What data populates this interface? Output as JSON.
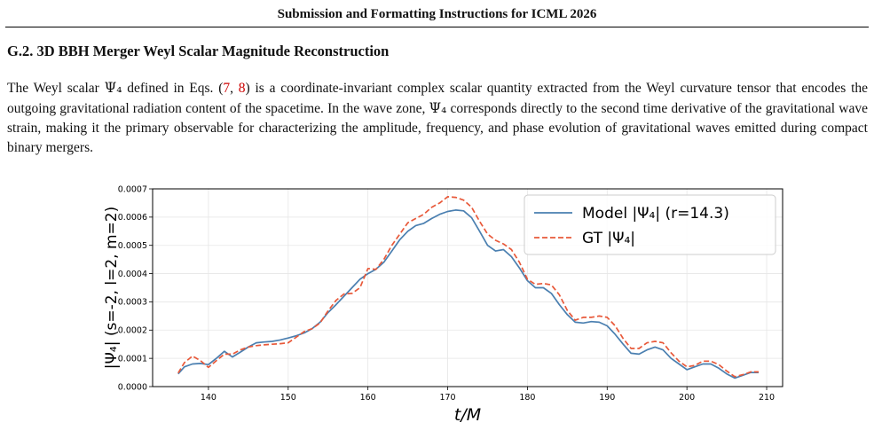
{
  "running_header": "Submission and Formatting Instructions for ICML 2026",
  "section": {
    "title": "G.2. 3D BBH Merger Weyl Scalar Magnitude Reconstruction"
  },
  "paragraph": {
    "p1": "The Weyl scalar ",
    "psi4a": "Ψ₄",
    "p2": " defined in Eqs. (",
    "ref7": "7",
    "comma": ", ",
    "ref8": "8",
    "p3": ") is a coordinate-invariant complex scalar quantity extracted from the Weyl curvature tensor that encodes the outgoing gravitational radiation content of the spacetime. In the wave zone, ",
    "psi4b": "Ψ₄",
    "p4": " corresponds directly to the second time derivative of the gravitational wave strain, making it the primary observable for characterizing the amplitude, frequency, and phase evolution of gravitational waves emitted during compact binary mergers."
  },
  "colors": {
    "model": "#4a7fb0",
    "gt": "#e8593a",
    "grid": "#e6e6e6"
  },
  "chart_data": {
    "type": "line",
    "title": "",
    "xlabel": "t/M",
    "ylabel": "|Ψ₄|  (s=-2, l=2, m=2)",
    "xlim": [
      133,
      212
    ],
    "ylim": [
      0,
      0.0007
    ],
    "xticks": [
      140,
      150,
      160,
      170,
      180,
      190,
      200,
      210
    ],
    "yticks": [
      0.0,
      0.0001,
      0.0002,
      0.0003,
      0.0004,
      0.0005,
      0.0006,
      0.0007
    ],
    "ytick_labels": [
      "0.0000",
      "0.0001",
      "0.0002",
      "0.0003",
      "0.0004",
      "0.0005",
      "0.0006",
      "0.0007"
    ],
    "grid": true,
    "legend_position": "top-right",
    "series": [
      {
        "name": "Model |Ψ₄|  (r=14.3)",
        "style": "solid",
        "x": [
          136.2,
          137,
          138,
          139,
          140,
          141,
          142,
          143,
          144,
          145,
          146,
          147,
          148,
          149,
          150,
          151,
          152,
          153,
          154,
          155,
          156,
          157,
          158,
          159,
          160,
          161,
          162,
          163,
          164,
          165,
          166,
          167,
          168,
          169,
          170,
          171,
          172,
          173,
          174,
          175,
          176,
          177,
          178,
          179,
          180,
          181,
          182,
          183,
          184,
          185,
          186,
          187,
          188,
          189,
          190,
          191,
          192,
          193,
          194,
          195,
          196,
          197,
          198,
          199,
          200,
          201,
          202,
          203,
          204,
          205,
          206,
          207,
          208,
          209
        ],
        "y": [
          4.5e-05,
          7e-05,
          8e-05,
          8.2e-05,
          7.8e-05,
          0.0001,
          0.000125,
          0.000105,
          0.000122,
          0.00014,
          0.000155,
          0.000158,
          0.00016,
          0.000165,
          0.000172,
          0.00018,
          0.00019,
          0.000205,
          0.000228,
          0.000262,
          0.00029,
          0.00032,
          0.00035,
          0.00038,
          0.0004,
          0.000415,
          0.00044,
          0.00048,
          0.00052,
          0.00055,
          0.00057,
          0.000578,
          0.000595,
          0.00061,
          0.00062,
          0.000625,
          0.000622,
          0.000598,
          0.00055,
          0.0005,
          0.00048,
          0.000485,
          0.00046,
          0.00042,
          0.000375,
          0.00035,
          0.00035,
          0.00033,
          0.00029,
          0.000255,
          0.000228,
          0.000225,
          0.00023,
          0.000228,
          0.000215,
          0.000185,
          0.00015,
          0.000118,
          0.000115,
          0.00013,
          0.00014,
          0.00013,
          0.0001,
          8e-05,
          6e-05,
          7e-05,
          8e-05,
          8e-05,
          6.5e-05,
          4.5e-05,
          3e-05,
          4e-05,
          5e-05,
          5e-05
        ]
      },
      {
        "name": "GT |Ψ₄|",
        "style": "dashed",
        "x": [
          136.2,
          137,
          138,
          139,
          140,
          141,
          142,
          143,
          144,
          145,
          146,
          147,
          148,
          149,
          150,
          151,
          152,
          153,
          154,
          155,
          156,
          157,
          158,
          159,
          160,
          161,
          162,
          163,
          164,
          165,
          166,
          167,
          168,
          169,
          170,
          171,
          172,
          173,
          174,
          175,
          176,
          177,
          178,
          179,
          180,
          181,
          182,
          183,
          184,
          185,
          186,
          187,
          188,
          189,
          190,
          191,
          192,
          193,
          194,
          195,
          196,
          197,
          198,
          199,
          200,
          201,
          202,
          203,
          204,
          205,
          206,
          207,
          208,
          209
        ],
        "y": [
          4.8e-05,
          8.5e-05,
          0.000108,
          9.2e-05,
          6.8e-05,
          9.2e-05,
          0.000115,
          0.000115,
          0.00013,
          0.00014,
          0.000145,
          0.000148,
          0.00015,
          0.000152,
          0.000155,
          0.000175,
          0.000195,
          0.000205,
          0.000225,
          0.000268,
          0.000305,
          0.000328,
          0.00033,
          0.00035,
          0.000418,
          0.000415,
          0.00045,
          0.0005,
          0.00054,
          0.00058,
          0.000595,
          0.00061,
          0.000635,
          0.00065,
          0.000672,
          0.00067,
          0.00066,
          0.000635,
          0.000585,
          0.00054,
          0.000518,
          0.000505,
          0.000485,
          0.00044,
          0.00038,
          0.000362,
          0.000365,
          0.00036,
          0.000325,
          0.00027,
          0.000235,
          0.000245,
          0.000245,
          0.00025,
          0.000245,
          0.000215,
          0.00017,
          0.000135,
          0.000135,
          0.000155,
          0.00016,
          0.000155,
          0.00012,
          9e-05,
          7e-05,
          7.5e-05,
          9e-05,
          9e-05,
          7.8e-05,
          5.5e-05,
          3.5e-05,
          4.2e-05,
          5.2e-05,
          5.2e-05
        ]
      }
    ]
  }
}
